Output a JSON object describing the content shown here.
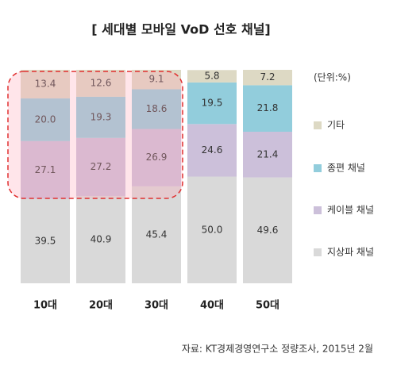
{
  "chart_data": {
    "type": "stacked-bar",
    "title": "[ 세대별 모바일 VoD 선호 채널]",
    "unit_label": "(단위:%)",
    "source": "자료: KT경제경영연구소 정량조사, 2015년 2월",
    "categories": [
      "10대",
      "20대",
      "30대",
      "40대",
      "50대"
    ],
    "series": [
      {
        "name": "지상파 채널",
        "color": "#d9d9d9",
        "values": [
          39.5,
          40.9,
          45.4,
          50.0,
          49.6
        ],
        "value_labels": [
          "39.5",
          "40.9",
          "45.4",
          "50.0",
          "49.6"
        ]
      },
      {
        "name": "케이블 채널",
        "color": "#ccc0da",
        "values": [
          27.1,
          27.2,
          26.9,
          24.6,
          21.4
        ],
        "value_labels": [
          "27.1",
          "27.2",
          "26.9",
          "24.6",
          "21.4"
        ]
      },
      {
        "name": "종편 채널",
        "color": "#92cddc",
        "values": [
          20.0,
          19.3,
          18.6,
          19.5,
          21.8
        ],
        "value_labels": [
          "20.0",
          "19.3",
          "18.6",
          "19.5",
          "21.8"
        ]
      },
      {
        "name": "기타",
        "color": "#ddd9c4",
        "values": [
          13.4,
          12.6,
          9.1,
          5.8,
          7.2
        ],
        "value_labels": [
          "13.4",
          "12.6",
          "9.1",
          "5.8",
          "7.2"
        ]
      }
    ]
  }
}
